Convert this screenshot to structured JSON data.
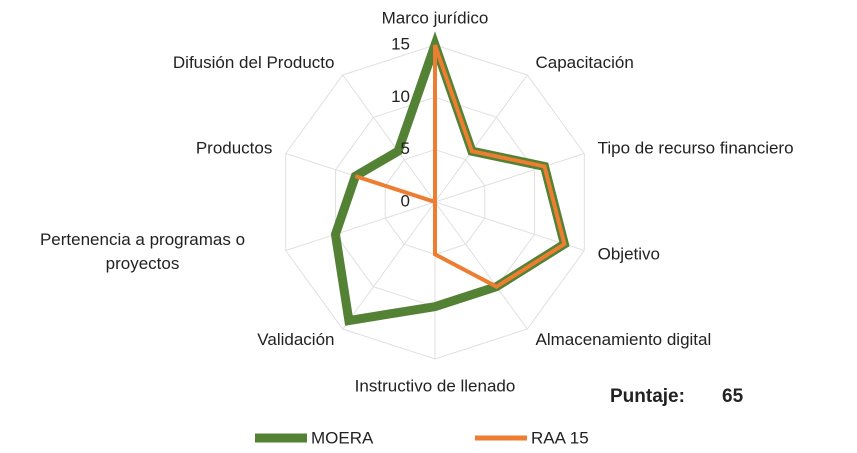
{
  "chart_data": {
    "type": "radar",
    "categories": [
      "Marco jurídico",
      "Capacitación",
      "Tipo de recurso financiero",
      "Objetivo",
      "Almacenamiento digital",
      "Instructivo de llenado",
      "Validación",
      "Pertenencia a programas o proyectos",
      "Productos",
      "Difusión del Producto"
    ],
    "series": [
      {
        "name": "MOERA",
        "color": "#548235",
        "values": [
          15,
          6,
          11,
          13,
          10,
          10,
          14,
          10,
          8,
          6
        ]
      },
      {
        "name": "RAA 15",
        "color": "#ed7d31",
        "values": [
          15,
          6,
          11,
          13,
          10,
          5,
          0,
          0,
          8,
          0
        ]
      }
    ],
    "ylim": [
      0,
      15
    ],
    "yticks": [
      0,
      5,
      10,
      15
    ],
    "grid": true,
    "legend": "bottom",
    "annotation": {
      "label": "Puntaje:",
      "value": "65"
    }
  }
}
